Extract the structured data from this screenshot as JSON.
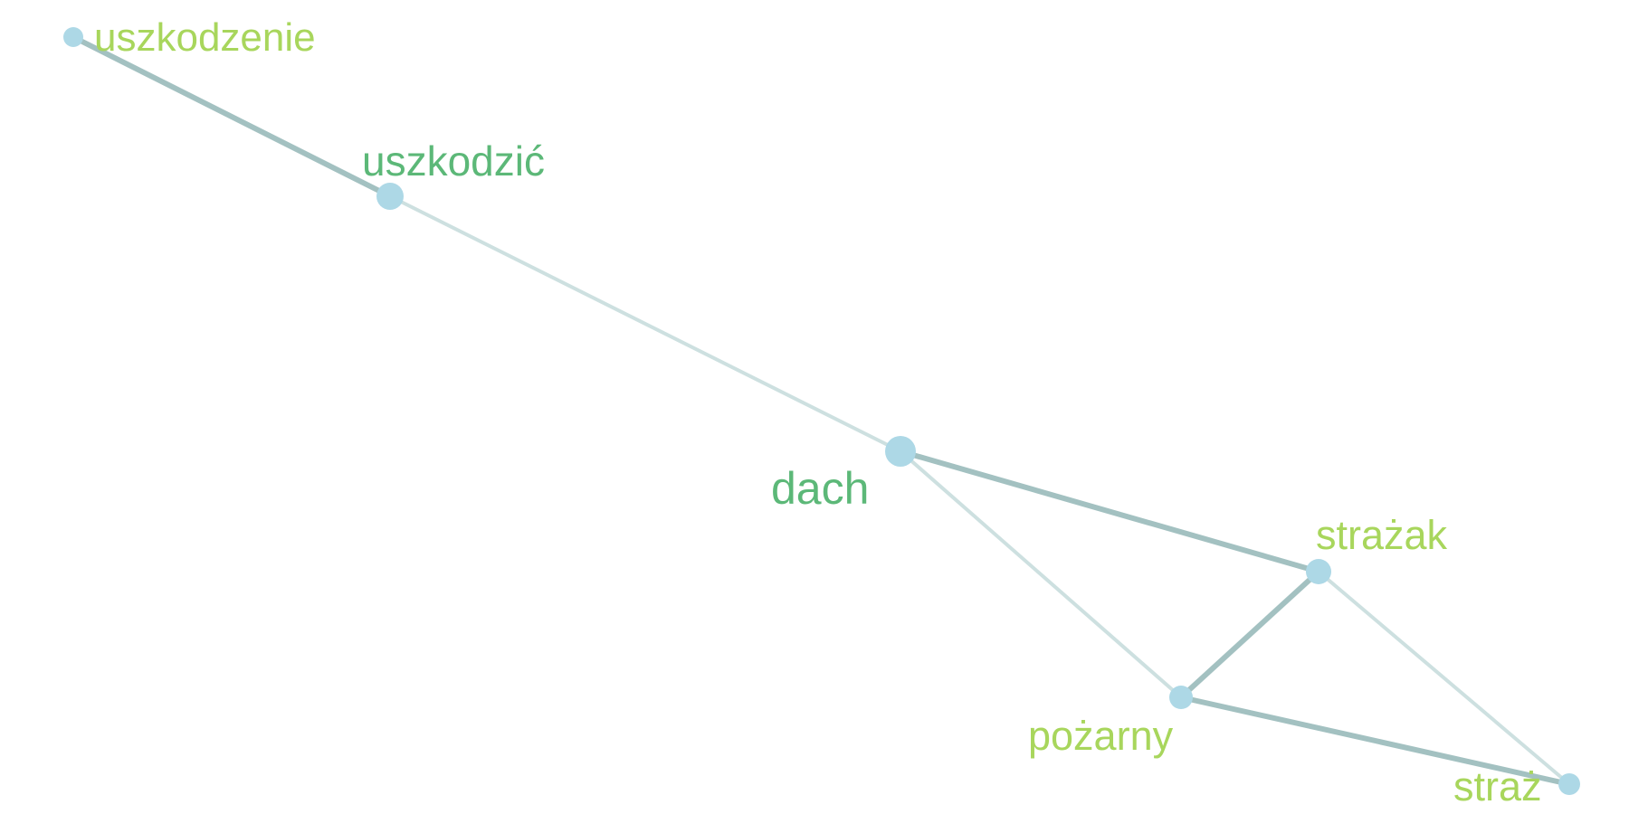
{
  "colors": {
    "node_fill": "#add8e6",
    "edge_strong": "#a3c1c1",
    "edge_weak": "#cde0e0",
    "label_dark": "#5cb878",
    "label_light": "#a8d65c"
  },
  "nodes": [
    {
      "id": "uszkodzenie",
      "label": "uszkodzenie",
      "tone": "light"
    },
    {
      "id": "uszkodzic",
      "label": "uszkodzić",
      "tone": "dark"
    },
    {
      "id": "dach",
      "label": "dach",
      "tone": "dark"
    },
    {
      "id": "strazak",
      "label": "strażak",
      "tone": "light"
    },
    {
      "id": "pozarny",
      "label": "pożarny",
      "tone": "light"
    },
    {
      "id": "straz",
      "label": "straż",
      "tone": "light"
    }
  ],
  "edges": [
    {
      "source": "uszkodzenie",
      "target": "uszkodzic",
      "weight": "strong"
    },
    {
      "source": "uszkodzic",
      "target": "dach",
      "weight": "weak"
    },
    {
      "source": "dach",
      "target": "strazak",
      "weight": "strong"
    },
    {
      "source": "dach",
      "target": "pozarny",
      "weight": "weak"
    },
    {
      "source": "strazak",
      "target": "pozarny",
      "weight": "strong"
    },
    {
      "source": "strazak",
      "target": "straz",
      "weight": "weak"
    },
    {
      "source": "pozarny",
      "target": "straz",
      "weight": "strong"
    }
  ]
}
